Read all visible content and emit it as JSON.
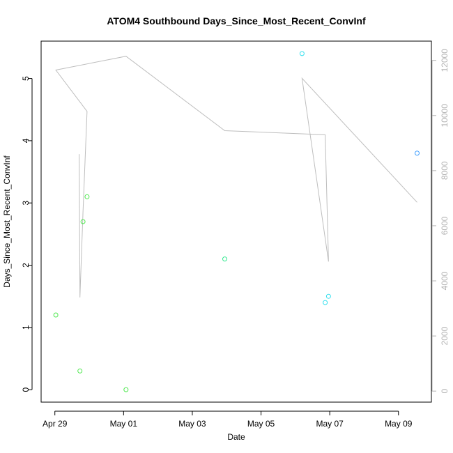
{
  "chart_data": {
    "type": "scatter",
    "title": "ATOM4 Southbound Days_Since_Most_Recent_ConvInf",
    "xlabel": "Date",
    "ylabel": "Days_Since_Most_Recent_ConvInf",
    "xlim": [
      "2012-04-28T14:24",
      "2012-05-09T23:00"
    ],
    "ylim": [
      -0.2,
      5.6
    ],
    "y2lim": [
      -400,
      12700
    ],
    "x_ticks": [
      {
        "date": "2012-04-29",
        "label": "Apr 29"
      },
      {
        "date": "2012-05-01",
        "label": "May 01"
      },
      {
        "date": "2012-05-03",
        "label": "May 03"
      },
      {
        "date": "2012-05-05",
        "label": "May 05"
      },
      {
        "date": "2012-05-07",
        "label": "May 07"
      },
      {
        "date": "2012-05-09",
        "label": "May 09"
      }
    ],
    "y_ticks": [
      0,
      1,
      2,
      3,
      4,
      5
    ],
    "y2_ticks": [
      0,
      2000,
      4000,
      6000,
      8000,
      10000,
      12000
    ],
    "colors": {
      "line": "#bebebe",
      "points_early": "#4fe84f",
      "points_mid": "#33e88f",
      "points_late": "#33e0ee",
      "points_last": "#3399ff",
      "axis": "#000000",
      "axis_right": "#b3b3b3"
    },
    "series": [
      {
        "marker": "open-circle",
        "axis": "left",
        "points": [
          {
            "x": "2012-04-29T00:40",
            "y": 1.2,
            "color": "#4fe84f"
          },
          {
            "x": "2012-04-29T17:30",
            "y": 0.3,
            "color": "#4fe84f"
          },
          {
            "x": "2012-04-29T19:40",
            "y": 2.7,
            "color": "#4fe84f"
          },
          {
            "x": "2012-04-29T22:30",
            "y": 3.1,
            "color": "#4fe84f"
          },
          {
            "x": "2012-05-01T01:40",
            "y": 0.0,
            "color": "#4fe84f"
          },
          {
            "x": "2012-05-03T22:40",
            "y": 2.1,
            "color": "#33e88f"
          },
          {
            "x": "2012-05-06T04:40",
            "y": 5.4,
            "color": "#33e0ee"
          },
          {
            "x": "2012-05-06T20:50",
            "y": 1.4,
            "color": "#33e0ee"
          },
          {
            "x": "2012-05-06T23:10",
            "y": 1.5,
            "color": "#33e0ee"
          },
          {
            "x": "2012-05-09T13:00",
            "y": 3.8,
            "color": "#3399ff"
          }
        ]
      },
      {
        "type": "line",
        "axis": "right",
        "points": [
          {
            "x": "2012-04-29T00:40",
            "y": 11650
          },
          {
            "x": "2012-04-29T22:30",
            "y": 10150
          },
          {
            "x": "2012-04-29T19:40",
            "y": 6500
          },
          {
            "x": "2012-04-29T17:30",
            "y": 3400
          },
          {
            "x": "2012-04-29T17:00",
            "y": 8600
          },
          {
            "x": "2012-04-29T17:30",
            "y": 3400
          },
          {
            "x": "2012-04-29T19:40",
            "y": 6500
          },
          {
            "x": "2012-04-29T22:30",
            "y": 10150
          },
          {
            "x": "2012-04-29T00:40",
            "y": 11650
          },
          {
            "x": "2012-05-01T01:40",
            "y": 12150
          },
          {
            "x": "2012-05-03T22:40",
            "y": 9450
          },
          {
            "x": "2012-05-06T20:50",
            "y": 9300
          },
          {
            "x": "2012-05-06T23:10",
            "y": 4700
          },
          {
            "x": "2012-05-06T04:40",
            "y": 11350
          },
          {
            "x": "2012-05-09T13:00",
            "y": 6850
          }
        ]
      }
    ]
  }
}
